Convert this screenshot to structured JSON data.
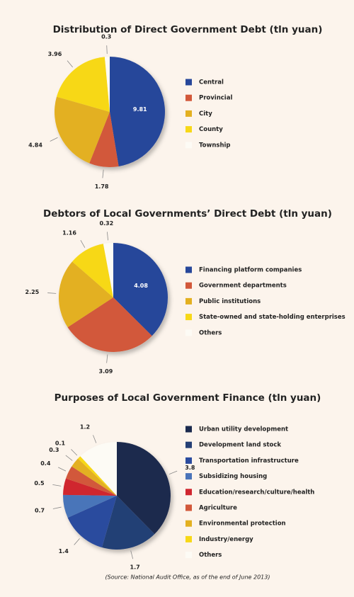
{
  "chart_data": [
    {
      "type": "pie",
      "title": "Distribution of Direct Government Debt (tln yuan)",
      "categories": [
        "Central",
        "Provincial",
        "City",
        "County",
        "Township"
      ],
      "values": [
        9.81,
        1.78,
        4.84,
        3.96,
        0.3
      ],
      "colors": [
        "#27479a",
        "#d2583a",
        "#e3b020",
        "#f7d817",
        "#fdfbf5"
      ]
    },
    {
      "type": "pie",
      "title": "Debtors of Local Governments’ Direct Debt (tln yuan)",
      "categories": [
        "Financing platform companies",
        "Government departments",
        "Public institutions",
        "State-owned and state-holding enterprises",
        "Others"
      ],
      "values": [
        4.08,
        3.09,
        2.25,
        1.16,
        0.32
      ],
      "colors": [
        "#27479a",
        "#d2583a",
        "#e3b020",
        "#f7d817",
        "#fdfbf5"
      ]
    },
    {
      "type": "pie",
      "title": "Purposes of Local Government Finance (tln yuan)",
      "categories": [
        "Urban utility development",
        "Development land stock",
        "Transportation infrastructure",
        "Subsidizing housing",
        "Education/research/culture/health",
        "Agriculture",
        "Environmental protection",
        "Industry/energy",
        "Others"
      ],
      "values": [
        3.8,
        1.7,
        1.4,
        0.7,
        0.5,
        0.4,
        0.3,
        0.1,
        1.2
      ],
      "colors": [
        "#1b2a4e",
        "#243f74",
        "#2a4b9e",
        "#4a74b9",
        "#d0262f",
        "#d2583a",
        "#e3b020",
        "#f7d817",
        "#fdfbf5"
      ]
    }
  ],
  "source": "(Source: National Audit Office, as of the end of June 2013)"
}
